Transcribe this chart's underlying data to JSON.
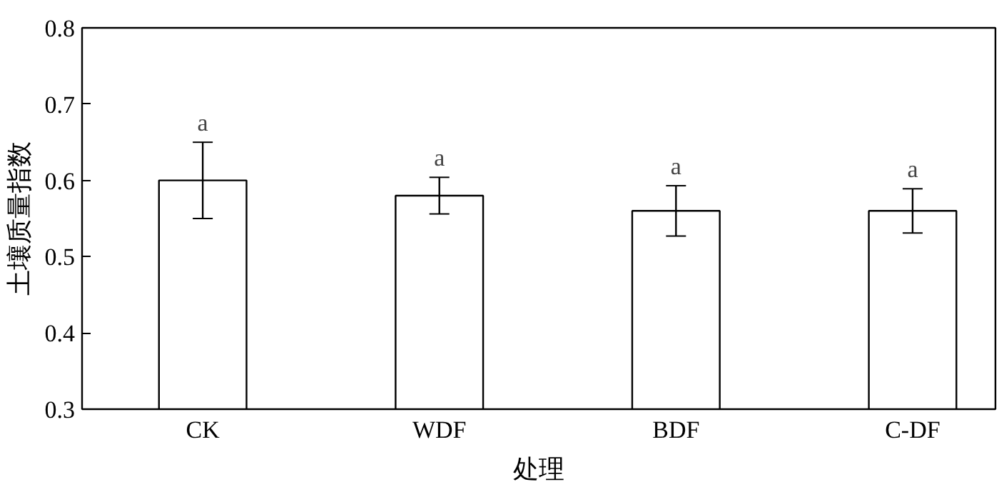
{
  "chart_data": {
    "type": "bar",
    "xlabel": "处理",
    "ylabel": "土壤质量指数",
    "categories": [
      "CK",
      "WDF",
      "BDF",
      "C-DF"
    ],
    "values": [
      0.6,
      0.58,
      0.56,
      0.56
    ],
    "errors": [
      0.05,
      0.024,
      0.033,
      0.029
    ],
    "color": "#ffffff",
    "ylim": [
      0.3,
      0.8
    ],
    "yticks": [
      0.3,
      0.4,
      0.5,
      0.6,
      0.7,
      0.8
    ],
    "annotations": [
      {
        "text": "a",
        "x": "CK",
        "y": 0.65
      },
      {
        "text": "a",
        "x": "WDF",
        "y": 0.604
      },
      {
        "text": "a",
        "x": "BDF",
        "y": 0.593
      },
      {
        "text": "a",
        "x": "C-DF",
        "y": 0.589
      }
    ]
  }
}
